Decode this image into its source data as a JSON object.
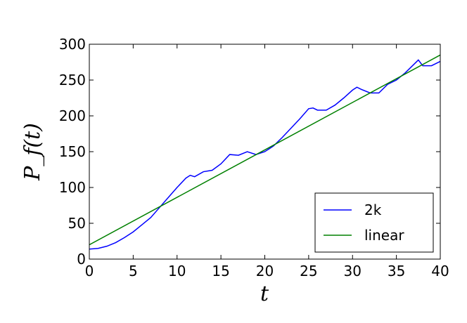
{
  "chart_data": {
    "type": "line",
    "xlabel": "t",
    "ylabel": "P_f(t)",
    "xlim": [
      0,
      40
    ],
    "xticks": [
      0,
      5,
      10,
      15,
      20,
      25,
      30,
      35,
      40
    ],
    "ylim": [
      0,
      300
    ],
    "yticks": [
      0,
      50,
      100,
      150,
      200,
      250,
      300
    ],
    "grid": false,
    "legend": "lower right",
    "series": [
      {
        "name": "2k",
        "color": "#0000ff",
        "x": [
          0,
          1,
          2,
          3,
          4,
          5,
          6,
          7,
          8,
          9,
          10,
          11,
          11.5,
          12,
          13,
          14,
          15,
          16,
          17,
          18,
          19,
          20,
          21,
          22,
          23,
          24,
          25,
          25.5,
          26,
          27,
          28,
          29,
          30,
          30.5,
          31,
          32,
          33,
          34,
          35,
          36,
          37,
          37.5,
          38,
          39,
          40
        ],
        "values": [
          14,
          15,
          18,
          23,
          30,
          38,
          48,
          58,
          72,
          86,
          100,
          113,
          117,
          115,
          122,
          124,
          133,
          146,
          145,
          150,
          146,
          150,
          158,
          170,
          183,
          196,
          210,
          211,
          208,
          208,
          215,
          225,
          236,
          240,
          237,
          232,
          232,
          244,
          250,
          260,
          272,
          278,
          270,
          270,
          276
        ]
      },
      {
        "name": "linear",
        "color": "#008000",
        "x": [
          0,
          40
        ],
        "values": [
          20,
          285
        ]
      }
    ]
  }
}
